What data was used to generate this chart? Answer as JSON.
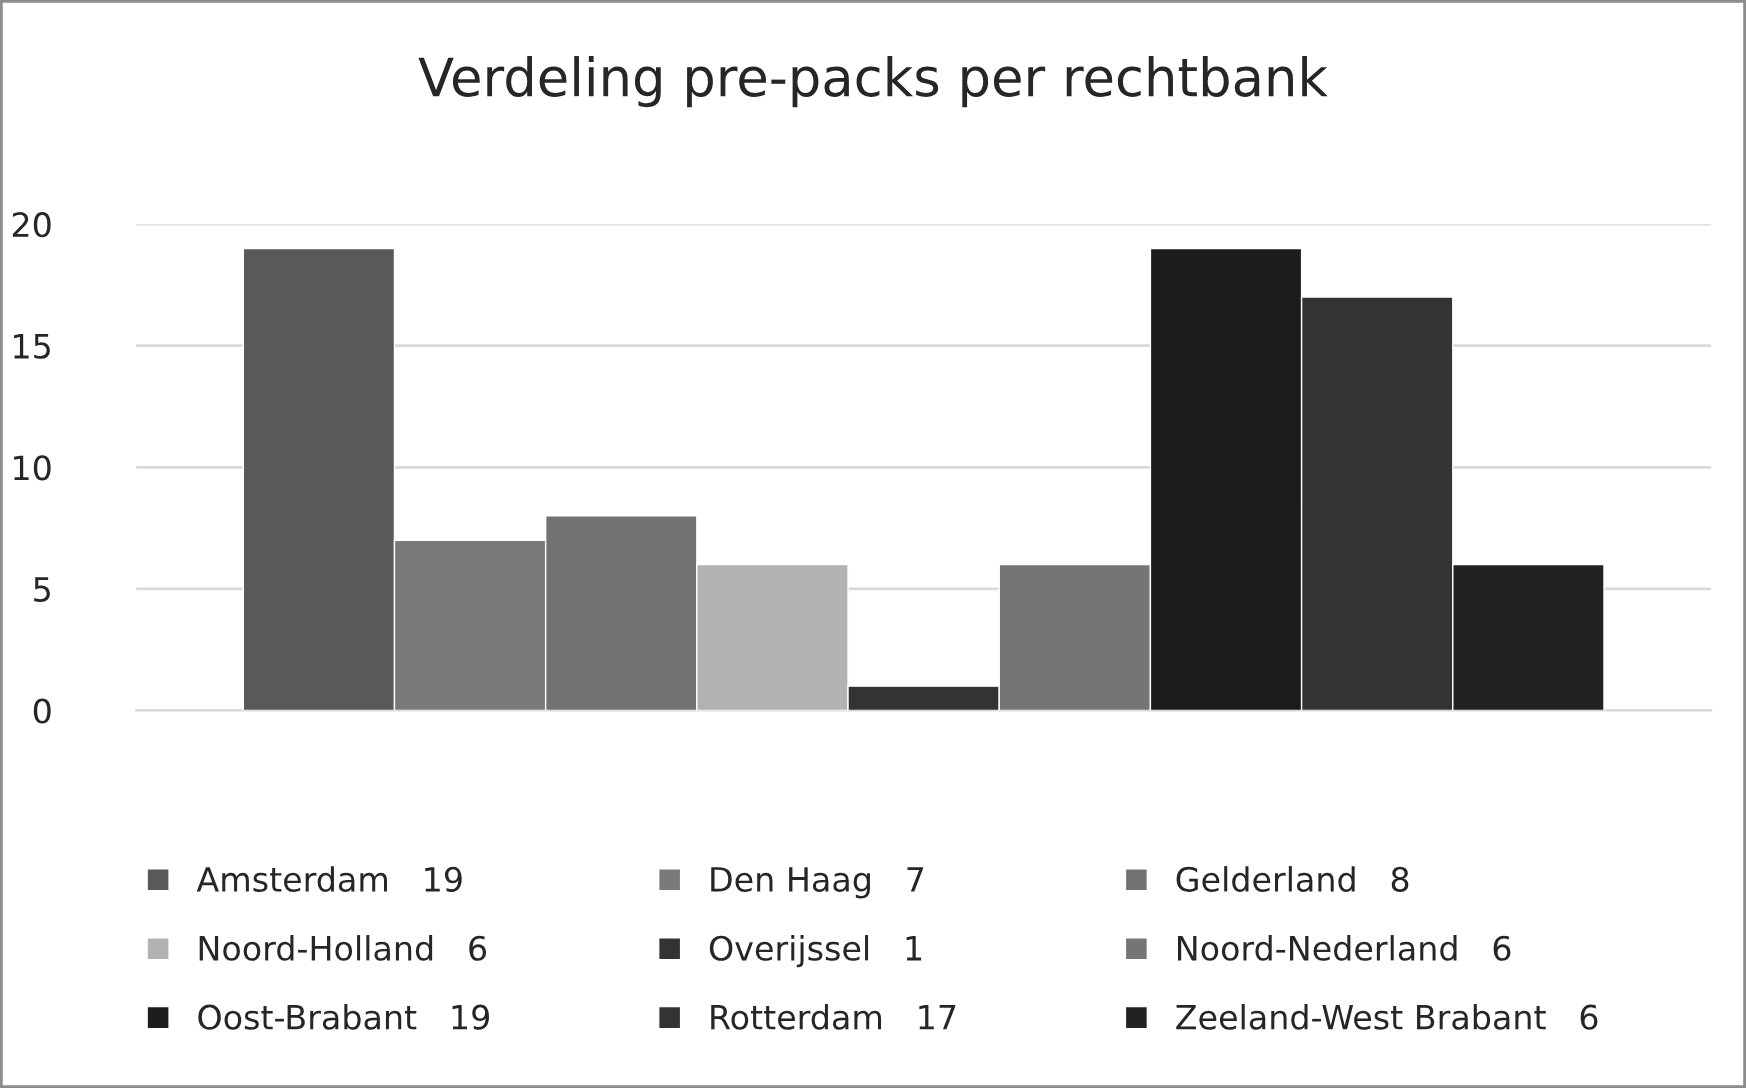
{
  "chart_data": {
    "type": "bar",
    "title": "Verdeling pre-packs per rechtbank",
    "categories": [
      null
    ],
    "series": [
      {
        "name": "Amsterdam   19",
        "color": "#595959",
        "values": [
          19
        ]
      },
      {
        "name": "Den Haag   7",
        "color": "#7a7a7a",
        "values": [
          7
        ]
      },
      {
        "name": "Gelderland   8",
        "color": "#727272",
        "values": [
          8
        ]
      },
      {
        "name": "Noord-Holland   6",
        "color": "#b2b2b2",
        "values": [
          6
        ]
      },
      {
        "name": "Overijssel   1",
        "color": "#333333",
        "values": [
          1
        ]
      },
      {
        "name": "Noord-Nederland   6",
        "color": "#757575",
        "values": [
          6
        ]
      },
      {
        "name": "Oost-Brabant   19",
        "color": "#1c1c1c",
        "values": [
          19
        ]
      },
      {
        "name": "Rotterdam   17",
        "color": "#333333",
        "values": [
          17
        ]
      },
      {
        "name": "Zeeland-West Brabant   6",
        "color": "#222222",
        "values": [
          6
        ]
      }
    ],
    "ylim": [
      0,
      20
    ],
    "yticks": [
      0,
      5,
      10,
      15,
      20
    ],
    "grid": "y",
    "legend": "bottom"
  }
}
